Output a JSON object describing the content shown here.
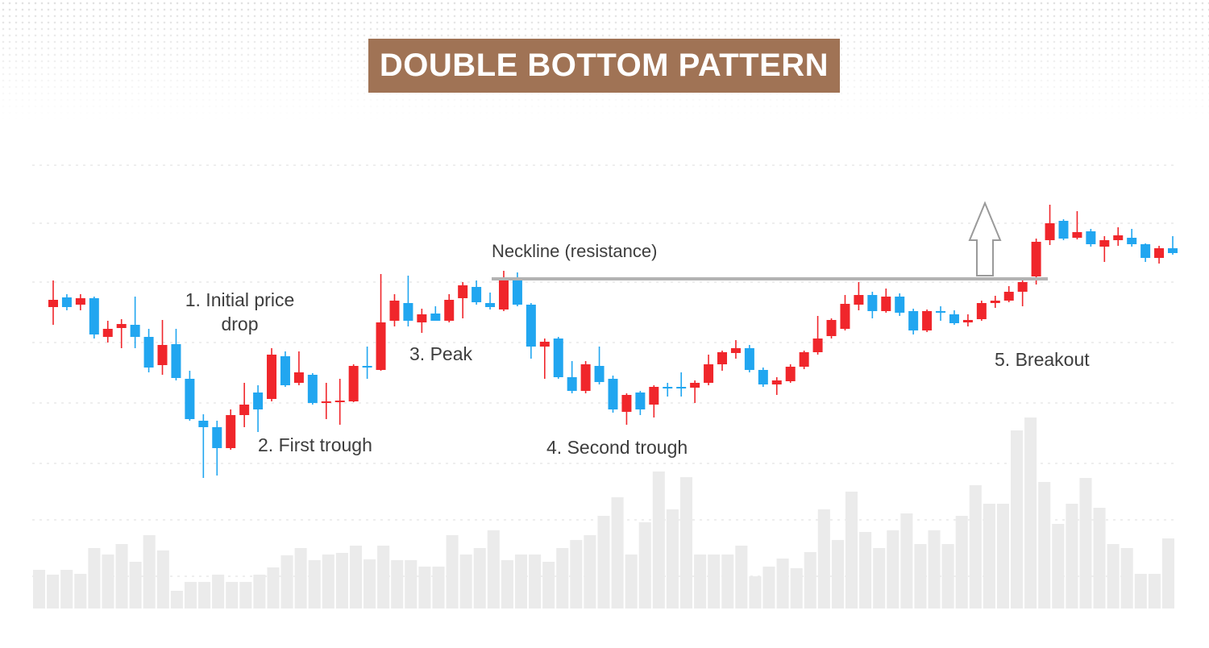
{
  "chart_data": {
    "type": "candlestick",
    "title": "DOUBLE BOTTOM PATTERN",
    "ylim": [
      0,
      400
    ],
    "colors": {
      "up": "#f0262b",
      "down": "#21a6f0"
    },
    "open": [
      219,
      231,
      222,
      230,
      182,
      193,
      197,
      182,
      147,
      173,
      130,
      78,
      70,
      44,
      85,
      113,
      105,
      158,
      125,
      135,
      100,
      101,
      102,
      146,
      141,
      202,
      224,
      200,
      211,
      202,
      230,
      244,
      224,
      216,
      254,
      222,
      170,
      180,
      132,
      115,
      146,
      130,
      89,
      113,
      98,
      120,
      120,
      119,
      125,
      148,
      162,
      168,
      141,
      123,
      127,
      145,
      163,
      183,
      192,
      222,
      234,
      214,
      232,
      214,
      190,
      214,
      210,
      200,
      204,
      224,
      227,
      238,
      257,
      302,
      326,
      305,
      313,
      294,
      302,
      305,
      297,
      280,
      292
    ],
    "high": [
      252,
      235,
      235,
      232,
      202,
      204,
      232,
      192,
      203,
      192,
      140,
      86,
      78,
      92,
      125,
      122,
      168,
      164,
      164,
      137,
      125,
      130,
      148,
      170,
      260,
      235,
      258,
      217,
      220,
      235,
      250,
      252,
      237,
      264,
      262,
      224,
      180,
      182,
      152,
      152,
      170,
      134,
      112,
      115,
      122,
      125,
      138,
      128,
      160,
      165,
      178,
      172,
      144,
      132,
      148,
      165,
      208,
      205,
      234,
      250,
      238,
      242,
      236,
      217,
      216,
      220,
      215,
      210,
      227,
      233,
      245,
      255,
      304,
      346,
      328,
      338,
      316,
      307,
      318,
      316,
      298,
      295,
      307
    ],
    "low": [
      197,
      215,
      215,
      180,
      175,
      168,
      168,
      138,
      135,
      128,
      78,
      7,
      10,
      42,
      70,
      64,
      102,
      120,
      122,
      98,
      80,
      73,
      101,
      130,
      140,
      195,
      195,
      187,
      202,
      200,
      205,
      222,
      216,
      214,
      220,
      155,
      130,
      130,
      112,
      112,
      123,
      88,
      73,
      85,
      82,
      108,
      108,
      100,
      122,
      140,
      155,
      138,
      120,
      110,
      125,
      142,
      160,
      180,
      190,
      215,
      205,
      212,
      208,
      185,
      188,
      202,
      197,
      195,
      202,
      218,
      225,
      220,
      247,
      296,
      302,
      303,
      294,
      275,
      295,
      294,
      275,
      273,
      284
    ],
    "close": [
      228,
      219,
      230,
      185,
      192,
      198,
      182,
      144,
      172,
      131,
      80,
      70,
      44,
      85,
      98,
      92,
      160,
      122,
      138,
      100,
      102,
      103,
      146,
      144,
      200,
      227,
      202,
      210,
      202,
      228,
      246,
      225,
      219,
      254,
      222,
      170,
      176,
      132,
      115,
      148,
      126,
      92,
      110,
      92,
      120,
      118,
      118,
      125,
      148,
      163,
      168,
      141,
      123,
      128,
      145,
      163,
      180,
      203,
      223,
      234,
      214,
      232,
      212,
      190,
      214,
      212,
      199,
      203,
      224,
      227,
      238,
      250,
      300,
      323,
      304,
      312,
      297,
      302,
      308,
      297,
      280,
      292,
      286
    ],
    "volume": {
      "ylim": [
        0,
        250
      ],
      "color": "#ebebeb",
      "values": [
        48,
        42,
        48,
        43,
        75,
        67,
        80,
        58,
        91,
        72,
        22,
        33,
        33,
        42,
        33,
        33,
        42,
        51,
        66,
        75,
        60,
        67,
        69,
        78,
        61,
        78,
        60,
        60,
        52,
        52,
        91,
        67,
        75,
        97,
        60,
        67,
        67,
        58,
        75,
        85,
        91,
        115,
        138,
        67,
        107,
        170,
        123,
        163,
        67,
        67,
        67,
        78,
        40,
        52,
        62,
        50,
        70,
        123,
        85,
        145,
        95,
        75,
        97,
        118,
        80,
        97,
        80,
        115,
        153,
        130,
        130,
        221,
        237,
        157,
        105,
        130,
        162,
        125,
        80,
        75,
        43,
        43,
        87
      ]
    },
    "neckline": {
      "label": "Neckline (resistance)",
      "value": 254,
      "color": "#b3b3b3"
    },
    "annotations": [
      "1. Initial price drop",
      "2. First trough",
      "3. Peak",
      "4. Second trough",
      "5. Breakout"
    ]
  }
}
